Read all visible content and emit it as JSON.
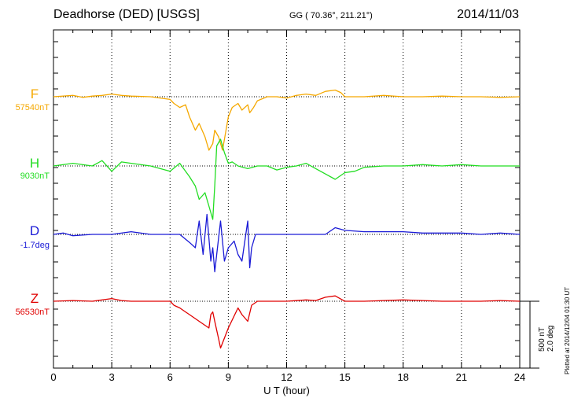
{
  "header": {
    "station": "Deadhorse (DED)  [USGS]",
    "coords": "GG ( 70.36°, 211.21°)",
    "date": "2014/11/03"
  },
  "plotted_note": "Plotted at 2014/12/04 01:30 UT",
  "chart_data": {
    "type": "line",
    "xlabel": "U T (hour)",
    "xlim": [
      0,
      24
    ],
    "xticks": [
      "0",
      "3",
      "6",
      "9",
      "12",
      "15",
      "18",
      "21",
      "24"
    ],
    "grid": true,
    "scale_labels": [
      "500 nT",
      "2.0 deg"
    ],
    "scale_bar_nT": 500,
    "series": [
      {
        "name": "F",
        "baseline": "57540nT",
        "color": "#f5a800",
        "x": [
          0,
          1,
          1.5,
          2,
          2.5,
          3,
          3.5,
          4,
          5,
          6,
          6.2,
          6.5,
          6.8,
          7,
          7.3,
          7.5,
          7.8,
          8,
          8.2,
          8.3,
          8.5,
          8.7,
          9,
          9.2,
          9.5,
          9.7,
          10,
          10.1,
          10.3,
          10.5,
          11,
          11.5,
          12,
          12.5,
          13,
          13.5,
          14,
          14.5,
          14.8,
          15,
          16,
          17,
          18,
          19,
          20,
          21,
          22,
          23,
          24
        ],
        "y": [
          0,
          10,
          -5,
          5,
          10,
          20,
          10,
          5,
          0,
          -20,
          -50,
          -80,
          -60,
          -150,
          -250,
          -200,
          -300,
          -400,
          -350,
          -250,
          -300,
          -400,
          -150,
          -80,
          -50,
          -100,
          -60,
          -120,
          -80,
          -30,
          0,
          0,
          -10,
          10,
          20,
          10,
          40,
          50,
          30,
          0,
          0,
          10,
          0,
          0,
          5,
          0,
          0,
          -5,
          0
        ]
      },
      {
        "name": "H",
        "baseline": "9030nT",
        "color": "#22dd22",
        "x": [
          0,
          1,
          2,
          2.5,
          3,
          3.5,
          4,
          5,
          6,
          6.5,
          7,
          7.3,
          7.5,
          7.8,
          8,
          8.2,
          8.3,
          8.4,
          8.6,
          8.8,
          9,
          9.2,
          9.5,
          10,
          10.5,
          11,
          11.5,
          12,
          12.5,
          13,
          13.5,
          14,
          14.5,
          15,
          15.5,
          16,
          17,
          18,
          19,
          20,
          21,
          22,
          23,
          24
        ],
        "y": [
          0,
          20,
          0,
          40,
          -40,
          30,
          20,
          0,
          -40,
          20,
          -80,
          -150,
          -250,
          -200,
          -300,
          -400,
          -150,
          150,
          200,
          100,
          20,
          30,
          0,
          -20,
          0,
          0,
          -30,
          -10,
          0,
          20,
          -20,
          -60,
          -100,
          -50,
          -40,
          -10,
          0,
          0,
          10,
          0,
          10,
          0,
          0,
          0
        ]
      },
      {
        "name": "D",
        "baseline": "-1.7deg",
        "color": "#1a1ad6",
        "x": [
          0,
          0.5,
          1,
          2,
          3,
          4,
          5,
          6,
          6.5,
          7,
          7.3,
          7.5,
          7.7,
          7.9,
          8.1,
          8.2,
          8.3,
          8.4,
          8.6,
          8.8,
          9,
          9.3,
          9.5,
          9.7,
          9.9,
          10,
          10.1,
          10.2,
          10.4,
          10.6,
          11,
          12,
          13,
          14,
          14.5,
          15,
          16,
          17,
          18,
          19,
          20,
          21,
          22,
          23,
          24
        ],
        "y": [
          0,
          10,
          -10,
          0,
          0,
          20,
          0,
          0,
          0,
          -60,
          -100,
          100,
          -150,
          150,
          -200,
          -100,
          -280,
          -150,
          100,
          -200,
          -100,
          -50,
          -150,
          -200,
          0,
          100,
          -250,
          -100,
          0,
          0,
          0,
          0,
          0,
          0,
          50,
          30,
          20,
          20,
          20,
          10,
          10,
          10,
          0,
          10,
          0
        ]
      },
      {
        "name": "Z",
        "baseline": "56530nT",
        "color": "#e00000",
        "x": [
          0,
          1,
          2,
          3,
          3.5,
          4,
          5,
          6,
          6.2,
          6.5,
          6.8,
          7,
          7.5,
          8,
          8.1,
          8.2,
          8.3,
          8.5,
          8.6,
          9,
          9.5,
          9.7,
          10,
          10.2,
          10.5,
          11,
          12,
          13,
          13.5,
          14,
          14.5,
          15,
          16,
          17,
          18,
          19,
          20,
          21,
          22,
          23,
          24
        ],
        "y": [
          0,
          5,
          0,
          20,
          5,
          0,
          0,
          0,
          -30,
          -50,
          -80,
          -100,
          -150,
          -200,
          -100,
          -80,
          -150,
          -280,
          -350,
          -200,
          -50,
          -100,
          -150,
          -30,
          0,
          0,
          0,
          10,
          5,
          30,
          40,
          0,
          0,
          5,
          10,
          5,
          0,
          0,
          0,
          5,
          0
        ]
      }
    ]
  }
}
